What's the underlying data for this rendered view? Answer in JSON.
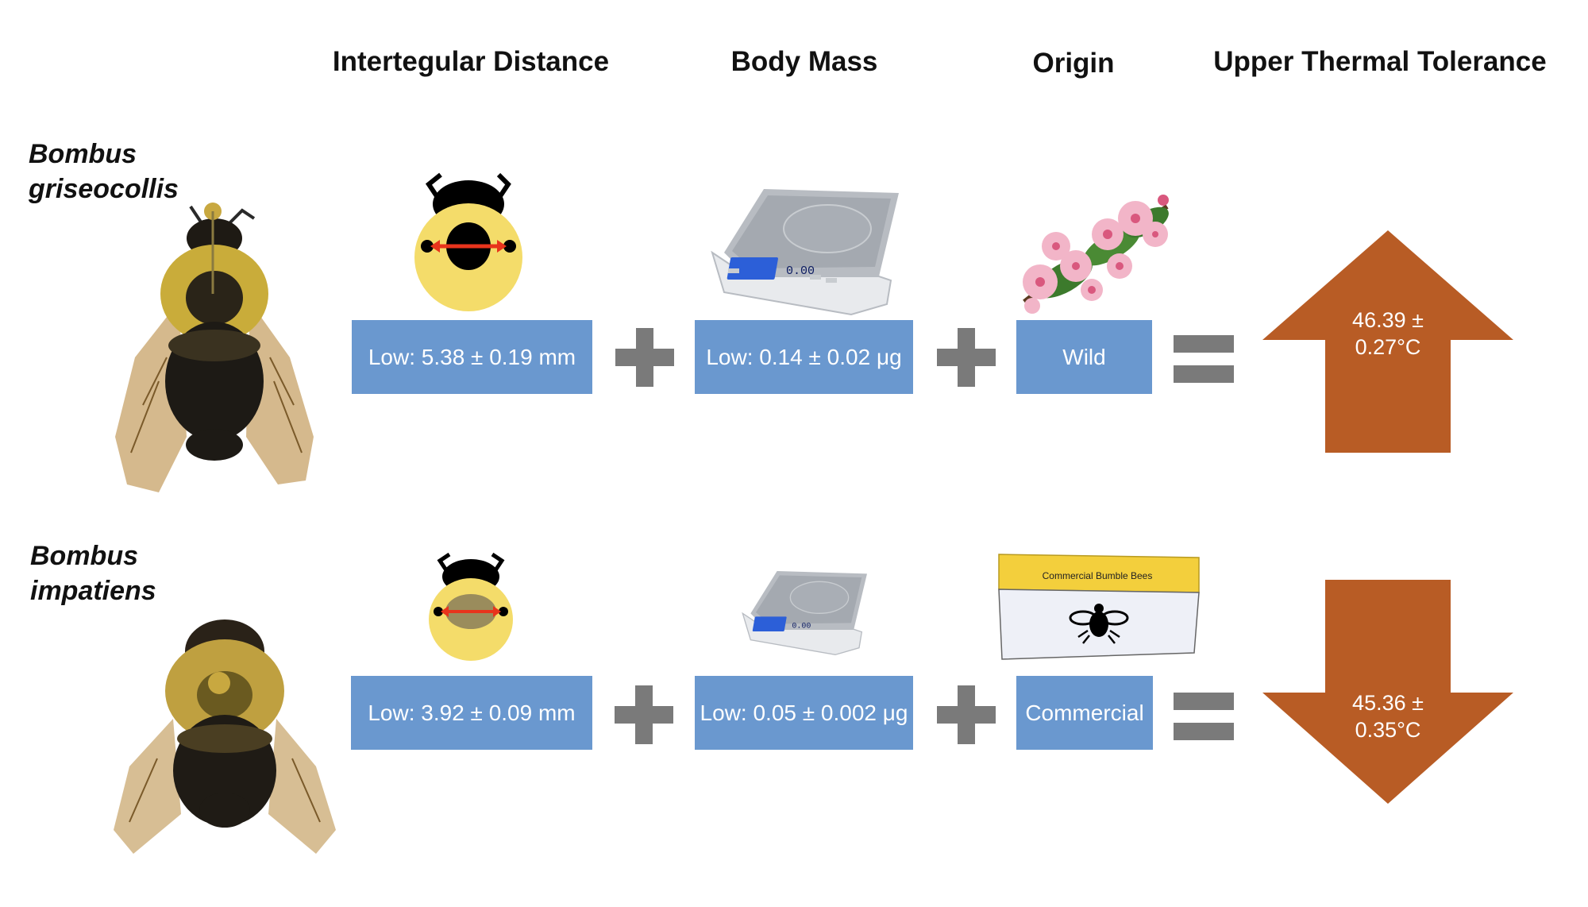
{
  "headers": {
    "intertegular": "Intertegular Distance",
    "body_mass": "Body Mass",
    "origin": "Origin",
    "thermal": "Upper Thermal Tolerance"
  },
  "rows": [
    {
      "species_line1": "Bombus",
      "species_line2": "griseocollis",
      "intertegular": "Low: 5.38 ± 0.19 mm",
      "body_mass": "Low: 0.14 ± 0.02 μg",
      "origin": "Wild",
      "tolerance_line1": "46.39 ±",
      "tolerance_line2": "0.27°C",
      "arrow_direction": "up"
    },
    {
      "species_line1": "Bombus",
      "species_line2": "impatiens",
      "intertegular": "Low: 3.92 ± 0.09 mm",
      "body_mass": "Low: 0.05 ± 0.002 μg",
      "origin": "Commercial",
      "tolerance_line1": "45.36 ±",
      "tolerance_line2": "0.35°C",
      "arrow_direction": "down"
    }
  ],
  "commercial_box_label": "Commercial Bumble Bees",
  "scale_display": "0.00",
  "colors": {
    "box_blue": "#6a98cf",
    "arrow_orange": "#b85c25",
    "operator_gray": "#7a7a7a",
    "bee_yellow": "#f4dc6a",
    "red_measure": "#e8341c"
  },
  "icons": {
    "bee_photo": "bee-photo",
    "bee_head_diagram": "bee-head-icon",
    "scale": "scale-icon",
    "flowers": "flowers-icon",
    "commercial_box": "bee-box-icon",
    "plus": "plus-icon",
    "equals": "equals-icon"
  }
}
